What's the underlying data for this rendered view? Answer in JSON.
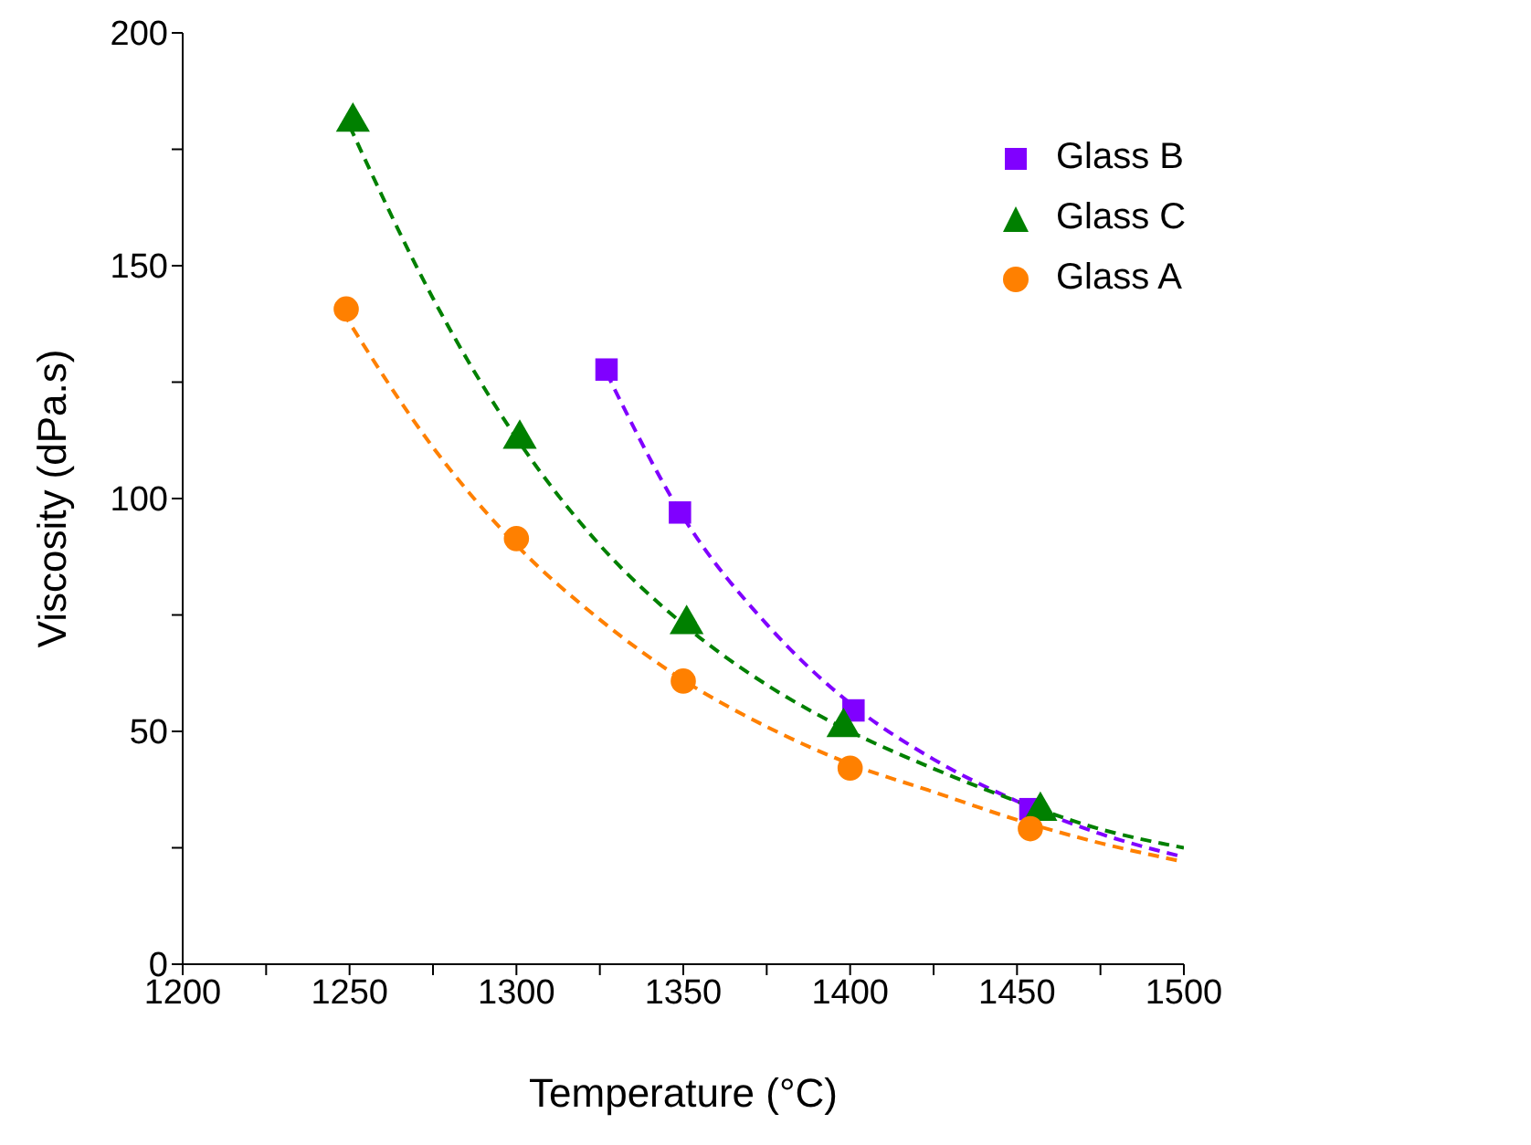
{
  "chart_data": {
    "type": "scatter",
    "xlabel": "Temperature (°C)",
    "ylabel": "Viscosity (dPa.s)",
    "xlim": [
      1200,
      1500
    ],
    "ylim": [
      0,
      200
    ],
    "xticks": [
      1200,
      {
        "value": 1225,
        "label": null
      },
      1250,
      {
        "value": 1275,
        "label": null
      },
      1300,
      {
        "value": 1325,
        "label": null
      },
      1350,
      {
        "value": 1375,
        "label": null
      },
      1400,
      {
        "value": 1425,
        "label": null
      },
      1450,
      {
        "value": 1475,
        "label": null
      },
      1500
    ],
    "yticks": [
      0,
      {
        "value": 25,
        "label": null
      },
      50,
      {
        "value": 75,
        "label": null
      },
      100,
      {
        "value": 125,
        "label": null
      },
      150,
      {
        "value": 175,
        "label": null
      },
      200
    ],
    "grid": false,
    "legend": "top right",
    "series": [
      {
        "name": "Glass B",
        "marker": "square",
        "color": "#8000ff",
        "x": [
          1327,
          1349,
          1401,
          1454
        ],
        "values": [
          127.7,
          97,
          54.5,
          33.3
        ]
      },
      {
        "name": "Glass C",
        "marker": "triangle",
        "color": "#008000",
        "x": [
          1251,
          1301,
          1351,
          1398,
          1457
        ],
        "values": [
          180.9,
          112.8,
          73,
          50.9,
          32.9
        ]
      },
      {
        "name": "Glass A",
        "marker": "circle",
        "color": "#ff8000",
        "x": [
          1249,
          1300,
          1350,
          1400,
          1454
        ],
        "values": [
          140.7,
          91.4,
          60.8,
          42.1,
          29.1
        ]
      },
      {
        "type": "line",
        "line_style": "dashed",
        "marker": "none",
        "color": "#8000ff",
        "x": [
          1327,
          1350,
          1375,
          1400,
          1425,
          1450,
          1475,
          1500
        ],
        "values": [
          127,
          96,
          73,
          56,
          44,
          35,
          28,
          23
        ]
      },
      {
        "type": "line",
        "line_style": "dashed",
        "marker": "none",
        "color": "#008000",
        "x": [
          1250,
          1275,
          1300,
          1325,
          1350,
          1375,
          1400,
          1425,
          1450,
          1475,
          1500
        ],
        "values": [
          180,
          143,
          113,
          90,
          73,
          60,
          50,
          42,
          35,
          29,
          25
        ]
      },
      {
        "type": "line",
        "line_style": "dashed",
        "marker": "none",
        "color": "#ff8000",
        "x": [
          1248,
          1275,
          1300,
          1325,
          1350,
          1375,
          1400,
          1425,
          1450,
          1475,
          1500
        ],
        "values": [
          140,
          111,
          90,
          74,
          61,
          51,
          43,
          37,
          31,
          26,
          22
        ]
      }
    ]
  }
}
